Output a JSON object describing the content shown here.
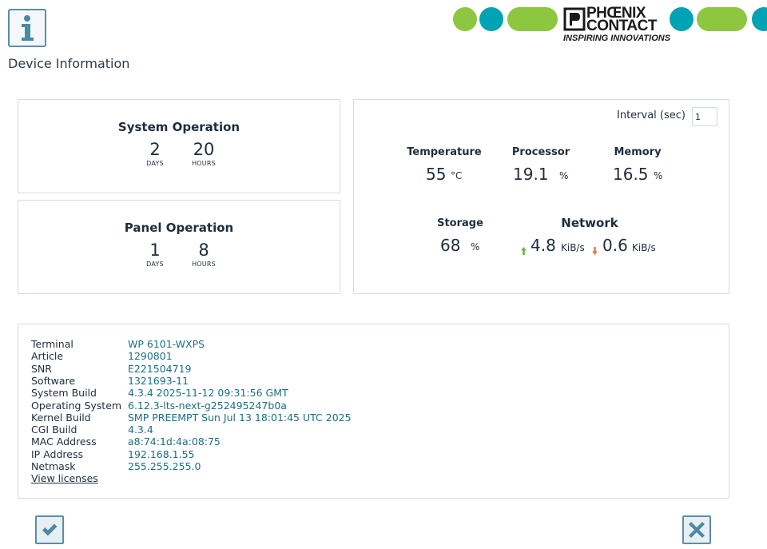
{
  "page": {
    "title": "Device Information"
  },
  "brand": {
    "name_line1": "PHŒNIX",
    "name_line2": "CONTACT",
    "tagline": "INSPIRING INNOVATIONS"
  },
  "system_operation": {
    "title": "System Operation",
    "days": "2",
    "days_label": "DAYS",
    "hours": "20",
    "hours_label": "HOURS"
  },
  "panel_operation": {
    "title": "Panel Operation",
    "days": "1",
    "days_label": "DAYS",
    "hours": "8",
    "hours_label": "HOURS"
  },
  "metrics": {
    "interval_label": "Interval (sec)",
    "interval_value": "1",
    "temperature": {
      "label": "Temperature",
      "value": "55",
      "unit": "°C"
    },
    "processor": {
      "label": "Processor",
      "value": "19.1",
      "unit": "%"
    },
    "memory": {
      "label": "Memory",
      "value": "16.5",
      "unit": "%"
    },
    "storage": {
      "label": "Storage",
      "value": "68",
      "unit": "%"
    },
    "network": {
      "label": "Network",
      "up_value": "4.8",
      "up_unit": "KiB/s",
      "down_value": "0.6",
      "down_unit": "KiB/s"
    }
  },
  "details": [
    {
      "key": "Terminal",
      "value": "WP 6101-WXPS"
    },
    {
      "key": "Article",
      "value": "1290801"
    },
    {
      "key": "SNR",
      "value": "E221504719"
    },
    {
      "key": "Software",
      "value": "1321693-11"
    },
    {
      "key": "System Build",
      "value": "4.3.4 2025-11-12 09:31:56 GMT"
    },
    {
      "key": "Operating System",
      "value": "6.12.3-lts-next-g252495247b0a"
    },
    {
      "key": "Kernel Build",
      "value": "SMP PREEMPT Sun Jul 13 18:01:45 UTC 2025"
    },
    {
      "key": "CGI Build",
      "value": "4.3.4"
    },
    {
      "key": "MAC Address",
      "value": "a8:74:1d:4a:08:75"
    },
    {
      "key": "IP Address",
      "value": "192.168.1.55"
    },
    {
      "key": "Netmask",
      "value": "255.255.255.0"
    }
  ],
  "licenses_link": "View licenses",
  "icons": {
    "info": "info-icon",
    "confirm": "check-icon",
    "close": "close-icon",
    "upload": "arrow-up-icon",
    "download": "arrow-down-icon"
  },
  "colors": {
    "green": "#8dc63f",
    "teal": "#00a3b4",
    "value_text": "#1a6f8a",
    "border": "#cfdde6"
  }
}
